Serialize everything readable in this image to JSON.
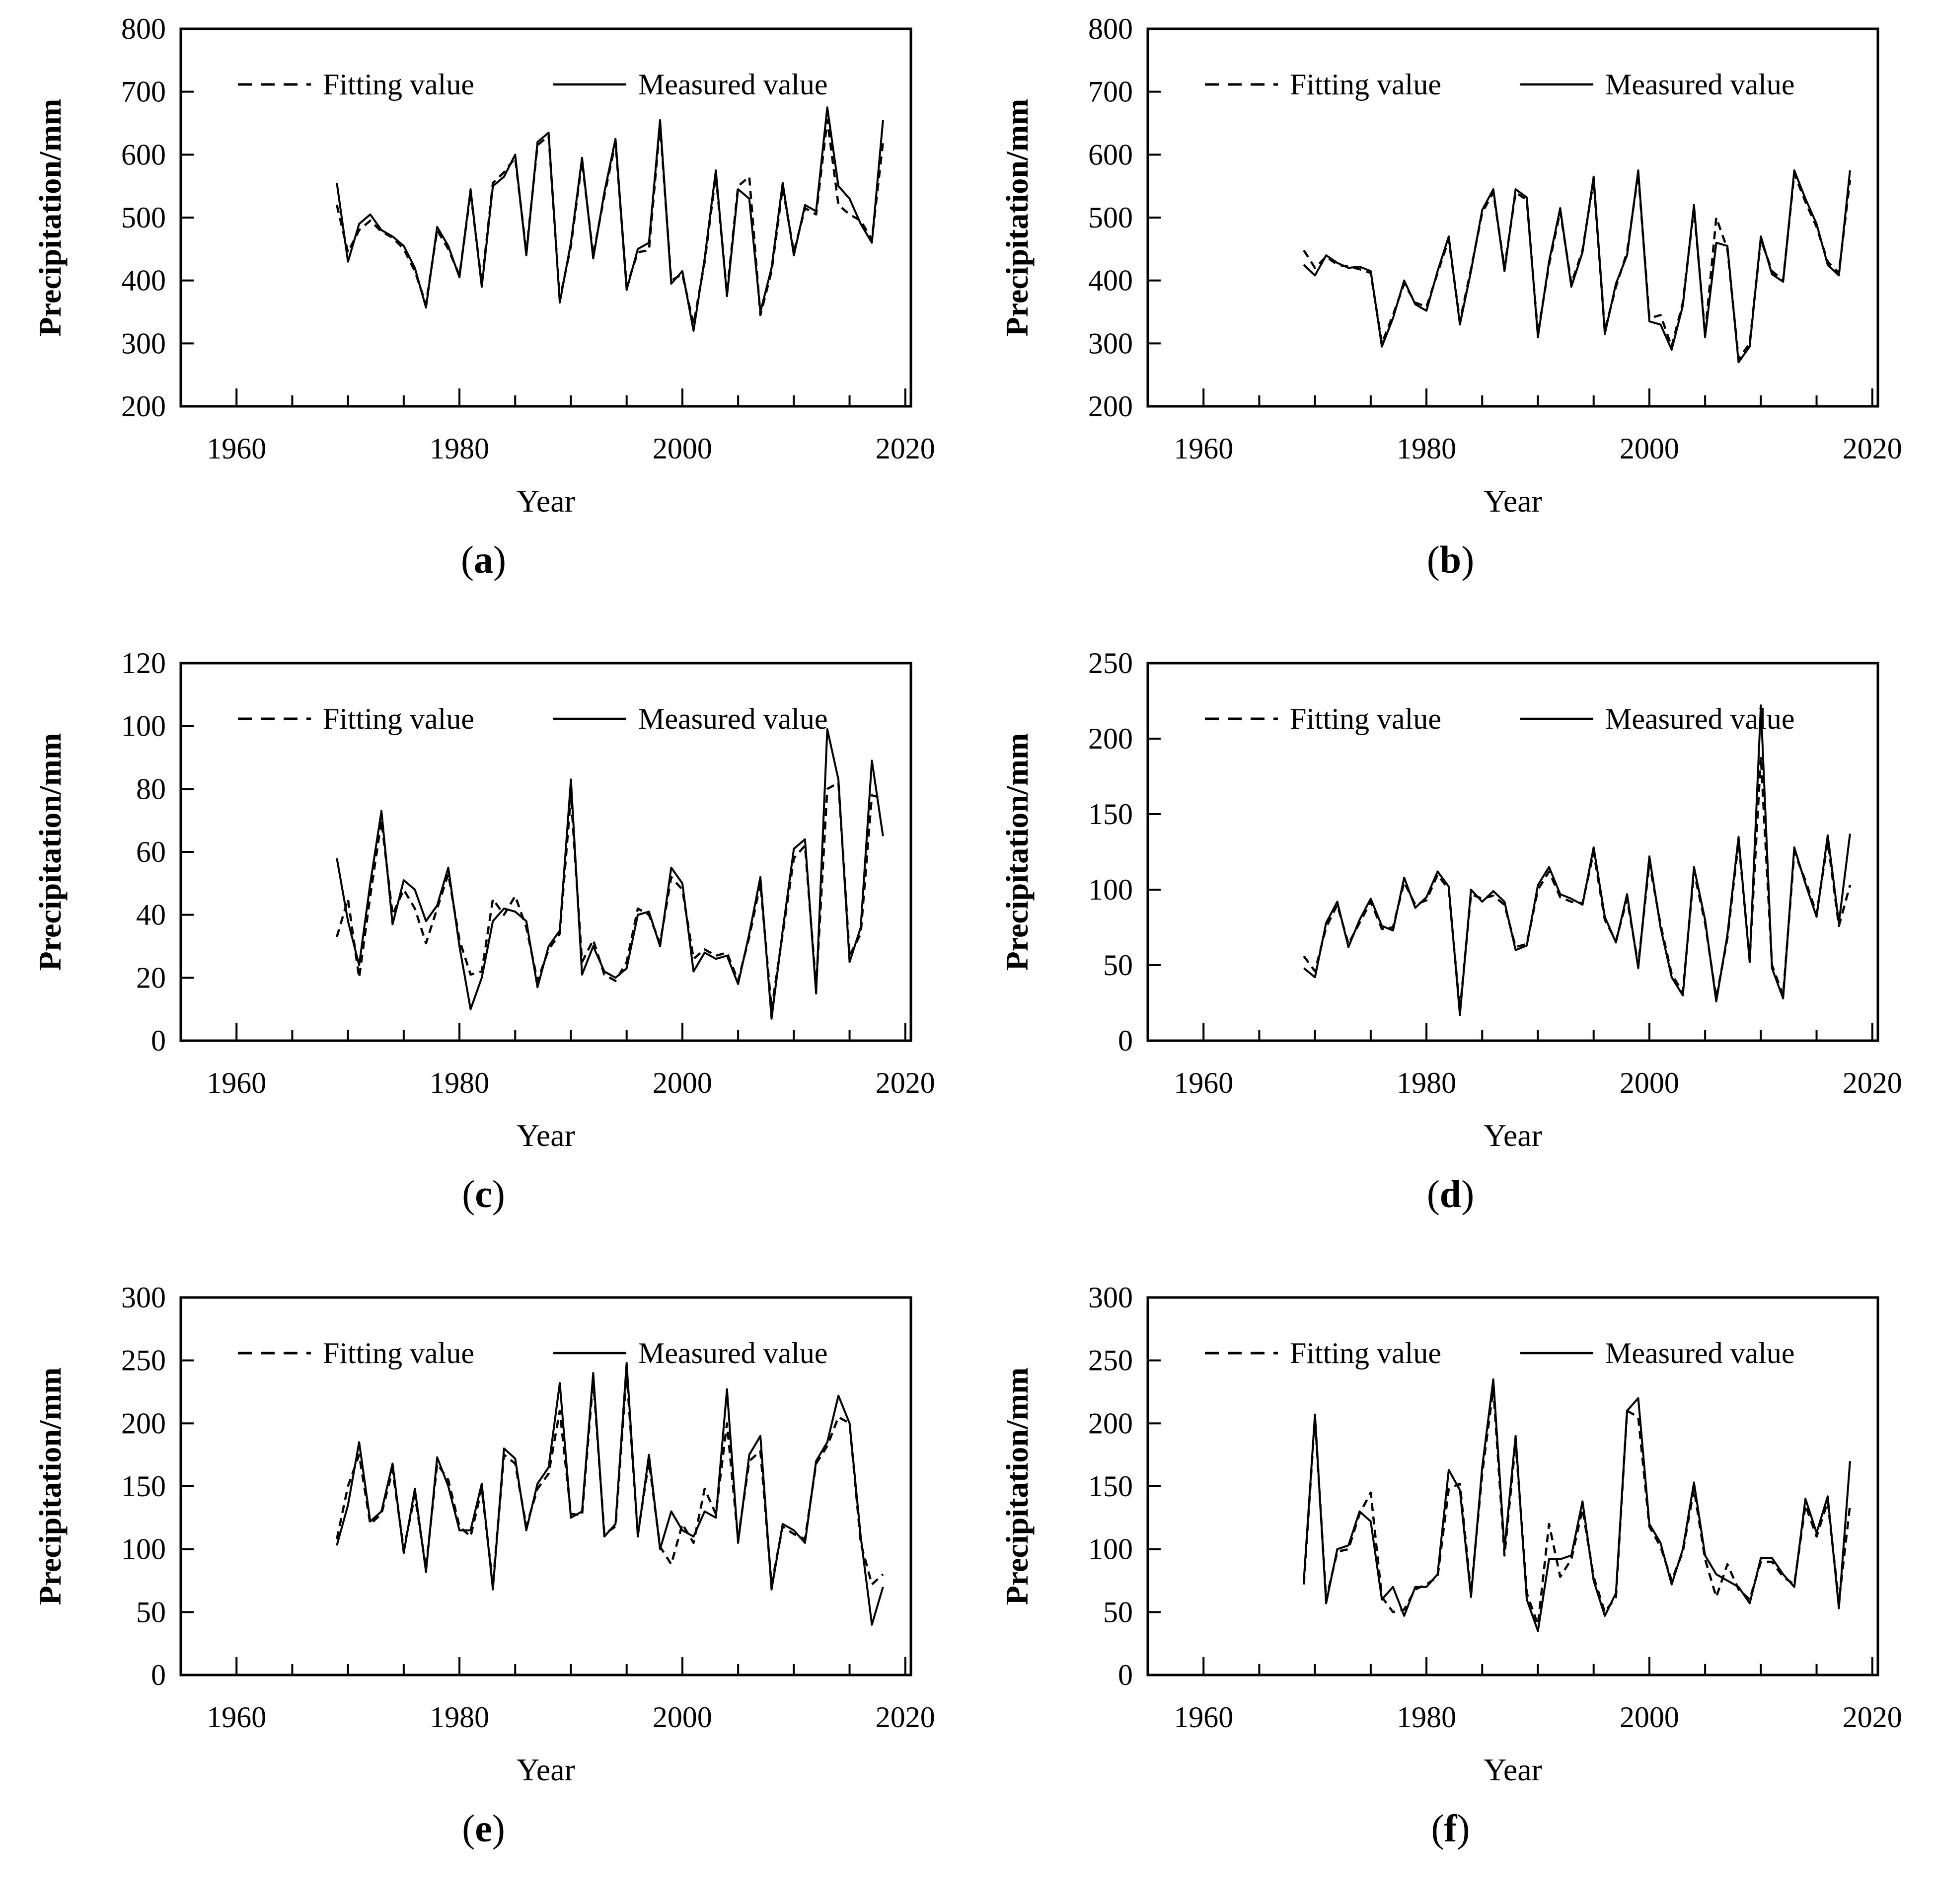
{
  "page": {
    "background": "#ffffff",
    "line_color": "#000000"
  },
  "chart_data": [
    {
      "type": "line",
      "caption": "(a)",
      "caption_open": "(",
      "caption_letter": "a",
      "caption_close": ")",
      "xlabel": "Year",
      "ylabel": "Precipitation/mm",
      "xlim": [
        1955,
        2020.5
      ],
      "ylim": [
        200,
        800
      ],
      "y_ticks": [
        200,
        300,
        400,
        500,
        600,
        700,
        800
      ],
      "x_tick_labels": [
        1960,
        1980,
        2000,
        2020
      ],
      "x_minor_start": 1960,
      "x_minor_end": 2020,
      "x_minor_step": 5,
      "x_years_start": 1969,
      "grid": false,
      "legend_position": "top-inside",
      "series": [
        {
          "name": "Fitting value",
          "style": "dashed",
          "values": [
            520,
            445,
            480,
            495,
            478,
            468,
            450,
            415,
            362,
            480,
            450,
            408,
            540,
            395,
            555,
            572,
            595,
            445,
            615,
            630,
            370,
            455,
            590,
            440,
            535,
            620,
            390,
            445,
            448,
            648,
            400,
            410,
            330,
            430,
            568,
            380,
            550,
            565,
            345,
            415,
            548,
            445,
            515,
            505,
            655,
            520,
            505,
            495,
            465,
            620
          ]
        },
        {
          "name": "Measured value",
          "style": "solid",
          "values": [
            555,
            430,
            490,
            505,
            480,
            470,
            455,
            420,
            357,
            485,
            455,
            405,
            545,
            390,
            550,
            565,
            600,
            440,
            620,
            635,
            365,
            460,
            595,
            435,
            540,
            625,
            385,
            450,
            460,
            655,
            395,
            415,
            320,
            435,
            575,
            375,
            545,
            530,
            350,
            420,
            555,
            440,
            520,
            510,
            675,
            550,
            530,
            490,
            460,
            655
          ]
        }
      ]
    },
    {
      "type": "line",
      "caption": "(b)",
      "caption_open": "(",
      "caption_letter": "b",
      "caption_close": ")",
      "xlabel": "Year",
      "ylabel": "Precipitation/mm",
      "xlim": [
        1955,
        2020.5
      ],
      "ylim": [
        200,
        800
      ],
      "y_ticks": [
        200,
        300,
        400,
        500,
        600,
        700,
        800
      ],
      "x_tick_labels": [
        1960,
        1980,
        2000,
        2020
      ],
      "x_minor_start": 1960,
      "x_minor_end": 2020,
      "x_minor_step": 5,
      "x_years_start": 1969,
      "grid": false,
      "legend_position": "top-inside",
      "series": [
        {
          "name": "Fitting value",
          "style": "dashed",
          "values": [
            448,
            420,
            438,
            425,
            422,
            418,
            412,
            300,
            345,
            395,
            365,
            358,
            412,
            465,
            335,
            418,
            508,
            540,
            420,
            540,
            528,
            315,
            425,
            510,
            395,
            448,
            560,
            320,
            390,
            445,
            570,
            340,
            345,
            295,
            365,
            515,
            315,
            500,
            450,
            275,
            300,
            465,
            415,
            400,
            570,
            525,
            485,
            430,
            412,
            560
          ]
        },
        {
          "name": "Measured value",
          "style": "solid",
          "values": [
            425,
            408,
            440,
            428,
            420,
            422,
            415,
            295,
            340,
            400,
            362,
            352,
            415,
            470,
            330,
            415,
            512,
            545,
            415,
            545,
            532,
            310,
            430,
            515,
            390,
            445,
            565,
            315,
            395,
            440,
            575,
            335,
            330,
            290,
            360,
            520,
            310,
            460,
            455,
            270,
            295,
            470,
            410,
            398,
            575,
            530,
            490,
            425,
            408,
            575
          ]
        }
      ]
    },
    {
      "type": "line",
      "caption": "(c)",
      "caption_open": "(",
      "caption_letter": "c",
      "caption_close": ")",
      "xlabel": "Year",
      "ylabel": "Precipitation/mm",
      "xlim": [
        1955,
        2020.5
      ],
      "ylim": [
        0,
        120
      ],
      "y_ticks": [
        0,
        20,
        40,
        60,
        80,
        100,
        120
      ],
      "x_tick_labels": [
        1960,
        1980,
        2000,
        2020
      ],
      "x_minor_start": 1960,
      "x_minor_end": 2020,
      "x_minor_step": 5,
      "x_years_start": 1969,
      "grid": false,
      "legend_position": "top-inside",
      "series": [
        {
          "name": "Fitting value",
          "style": "dashed",
          "values": [
            33,
            45,
            20,
            46,
            70,
            40,
            48,
            42,
            31,
            42,
            53,
            32,
            21,
            22,
            45,
            40,
            46,
            36,
            19,
            29,
            34,
            78,
            25,
            32,
            21,
            19,
            25,
            42,
            40,
            31,
            52,
            48,
            26,
            29,
            27,
            28,
            19,
            33,
            50,
            10,
            34,
            58,
            62,
            17,
            80,
            82,
            27,
            34,
            78,
            77
          ]
        },
        {
          "name": "Measured value",
          "style": "solid",
          "values": [
            58,
            38,
            24,
            50,
            73,
            37,
            51,
            48,
            38,
            43,
            55,
            30,
            10,
            20,
            38,
            42,
            41,
            38,
            17,
            30,
            35,
            83,
            21,
            30,
            22,
            20,
            23,
            40,
            41,
            30,
            55,
            50,
            22,
            28,
            26,
            27,
            18,
            34,
            52,
            7,
            35,
            61,
            64,
            15,
            99,
            83,
            25,
            36,
            89,
            65
          ]
        }
      ]
    },
    {
      "type": "line",
      "caption": "(d)",
      "caption_open": "(",
      "caption_letter": "d",
      "caption_close": ")",
      "xlabel": "Year",
      "ylabel": "Precipitation/mm",
      "xlim": [
        1955,
        2020.5
      ],
      "ylim": [
        0,
        250
      ],
      "y_ticks": [
        0,
        50,
        100,
        150,
        200,
        250
      ],
      "x_tick_labels": [
        1960,
        1980,
        2000,
        2020
      ],
      "x_minor_start": 1960,
      "x_minor_end": 2020,
      "x_minor_step": 5,
      "x_years_start": 1969,
      "grid": false,
      "legend_position": "top-inside",
      "series": [
        {
          "name": "Fitting value",
          "style": "dashed",
          "values": [
            56,
            46,
            75,
            90,
            64,
            78,
            92,
            74,
            75,
            105,
            90,
            93,
            110,
            100,
            20,
            97,
            94,
            96,
            90,
            62,
            64,
            100,
            112,
            95,
            92,
            91,
            125,
            80,
            66,
            94,
            50,
            118,
            77,
            44,
            32,
            112,
            78,
            28,
            68,
            132,
            54,
            188,
            50,
            30,
            125,
            106,
            84,
            132,
            76,
            103
          ]
        },
        {
          "name": "Measured value",
          "style": "solid",
          "values": [
            48,
            42,
            78,
            92,
            62,
            80,
            94,
            76,
            73,
            108,
            88,
            95,
            112,
            102,
            17,
            100,
            92,
            99,
            92,
            60,
            63,
            103,
            115,
            97,
            94,
            90,
            128,
            82,
            65,
            97,
            48,
            122,
            75,
            42,
            30,
            115,
            80,
            26,
            70,
            135,
            52,
            222,
            48,
            28,
            128,
            104,
            82,
            136,
            78,
            137
          ]
        }
      ]
    },
    {
      "type": "line",
      "caption": "(e)",
      "caption_open": "(",
      "caption_letter": "e",
      "caption_close": ")",
      "xlabel": "Year",
      "ylabel": "Precipitation/mm",
      "xlim": [
        1955,
        2020.5
      ],
      "ylim": [
        0,
        300
      ],
      "y_ticks": [
        0,
        50,
        100,
        150,
        200,
        250,
        300
      ],
      "x_tick_labels": [
        1960,
        1980,
        2000,
        2020
      ],
      "x_minor_start": 1960,
      "x_minor_end": 2020,
      "x_minor_step": 5,
      "x_years_start": 1969,
      "grid": false,
      "legend_position": "top-inside",
      "series": [
        {
          "name": "Fitting value",
          "style": "dashed",
          "values": [
            108,
            150,
            175,
            120,
            128,
            163,
            100,
            143,
            85,
            168,
            155,
            118,
            110,
            148,
            72,
            175,
            168,
            118,
            148,
            160,
            210,
            128,
            127,
            235,
            112,
            118,
            240,
            112,
            170,
            102,
            88,
            120,
            105,
            148,
            128,
            200,
            108,
            170,
            178,
            72,
            118,
            112,
            108,
            168,
            182,
            205,
            200,
            105,
            72,
            80
          ]
        },
        {
          "name": "Measured value",
          "style": "solid",
          "values": [
            103,
            135,
            185,
            122,
            130,
            168,
            97,
            148,
            82,
            173,
            150,
            115,
            115,
            152,
            68,
            180,
            172,
            115,
            152,
            165,
            232,
            125,
            130,
            240,
            110,
            120,
            248,
            110,
            175,
            100,
            130,
            115,
            110,
            130,
            125,
            227,
            105,
            175,
            190,
            68,
            120,
            115,
            105,
            170,
            185,
            222,
            200,
            110,
            40,
            70
          ]
        }
      ]
    },
    {
      "type": "line",
      "caption": "(f)",
      "caption_open": "(",
      "caption_letter": "f",
      "caption_close": ")",
      "xlabel": "Year",
      "ylabel": "Precipitation/mm",
      "xlim": [
        1955,
        2020.5
      ],
      "ylim": [
        0,
        300
      ],
      "y_ticks": [
        0,
        50,
        100,
        150,
        200,
        250,
        300
      ],
      "x_tick_labels": [
        1960,
        1980,
        2000,
        2020
      ],
      "x_minor_start": 1960,
      "x_minor_end": 2020,
      "x_minor_step": 5,
      "x_years_start": 1969,
      "grid": false,
      "legend_position": "top-inside",
      "series": [
        {
          "name": "Fitting value",
          "style": "dashed",
          "values": [
            72,
            205,
            60,
            98,
            100,
            128,
            145,
            62,
            50,
            52,
            68,
            72,
            78,
            148,
            152,
            65,
            160,
            228,
            95,
            185,
            65,
            40,
            120,
            78,
            92,
            132,
            78,
            50,
            62,
            210,
            205,
            118,
            102,
            75,
            98,
            148,
            92,
            62,
            88,
            68,
            60,
            90,
            90,
            78,
            72,
            135,
            110,
            138,
            58,
            135
          ]
        },
        {
          "name": "Measured value",
          "style": "solid",
          "values": [
            75,
            207,
            57,
            100,
            103,
            130,
            122,
            60,
            70,
            47,
            70,
            70,
            80,
            163,
            147,
            62,
            165,
            235,
            100,
            190,
            60,
            35,
            92,
            92,
            95,
            138,
            75,
            47,
            65,
            210,
            220,
            120,
            105,
            72,
            100,
            153,
            95,
            80,
            75,
            70,
            57,
            93,
            93,
            80,
            70,
            140,
            113,
            142,
            53,
            170
          ]
        }
      ]
    }
  ]
}
